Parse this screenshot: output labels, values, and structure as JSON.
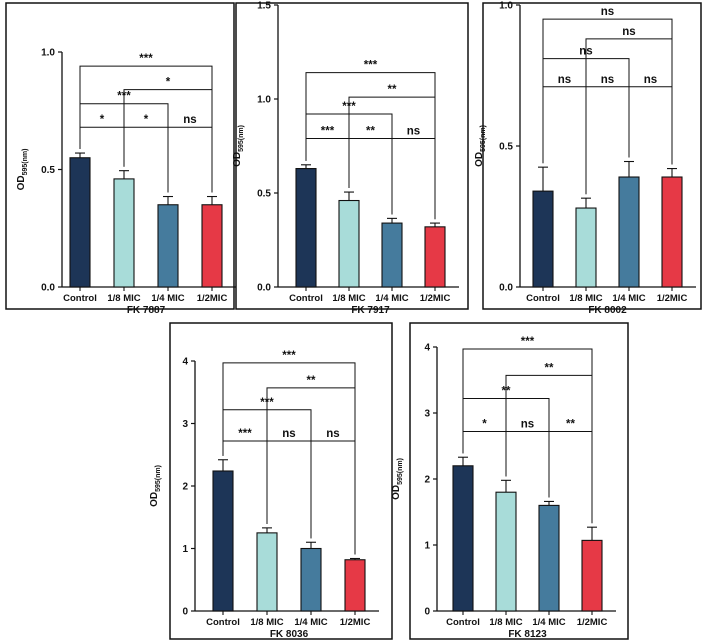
{
  "chart_data": [
    {
      "type": "bar",
      "title": "",
      "xlabel": "FK 7887",
      "ylabel": {
        "main": "OD",
        "sub": "595(nm)"
      },
      "categories": [
        "Control",
        "1/8 MIC",
        "1/4 MIC",
        "1/2MIC"
      ],
      "values": [
        0.55,
        0.46,
        0.35,
        0.35
      ],
      "errors": [
        0.02,
        0.035,
        0.035,
        0.035
      ],
      "ylim": [
        0,
        1.0
      ],
      "yticks": [
        "0.0",
        "0.5",
        "1.0"
      ],
      "significance": [
        {
          "from": 0,
          "to": 1,
          "label": "*"
        },
        {
          "from": 1,
          "to": 2,
          "label": "*"
        },
        {
          "from": 2,
          "to": 3,
          "label": "ns"
        },
        {
          "from": 0,
          "to": 2,
          "label": "***"
        },
        {
          "from": 1,
          "to": 3,
          "label": "*"
        },
        {
          "from": 0,
          "to": 3,
          "label": "***"
        }
      ]
    },
    {
      "type": "bar",
      "title": "",
      "xlabel": "FK 7917",
      "ylabel": {
        "main": "OD",
        "sub": "595(nm)"
      },
      "categories": [
        "Control",
        "1/8 MIC",
        "1/4 MIC",
        "1/2MIC"
      ],
      "values": [
        0.63,
        0.46,
        0.34,
        0.32
      ],
      "errors": [
        0.02,
        0.045,
        0.025,
        0.02
      ],
      "ylim": [
        0,
        1.5
      ],
      "yticks": [
        "0.0",
        "0.5",
        "1.0",
        "1.5"
      ],
      "significance": [
        {
          "from": 0,
          "to": 1,
          "label": "***"
        },
        {
          "from": 1,
          "to": 2,
          "label": "**"
        },
        {
          "from": 2,
          "to": 3,
          "label": "ns"
        },
        {
          "from": 0,
          "to": 2,
          "label": "***"
        },
        {
          "from": 1,
          "to": 3,
          "label": "**"
        },
        {
          "from": 0,
          "to": 3,
          "label": "***"
        }
      ]
    },
    {
      "type": "bar",
      "title": "",
      "xlabel": "FK 8002",
      "ylabel": {
        "main": "OD",
        "sub": "595(nm)"
      },
      "categories": [
        "Control",
        "1/8 MIC",
        "1/4 MIC",
        "1/2MIC"
      ],
      "values": [
        0.34,
        0.28,
        0.39,
        0.39
      ],
      "errors": [
        0.085,
        0.035,
        0.055,
        0.03
      ],
      "ylim": [
        0,
        1.0
      ],
      "yticks": [
        "0.0",
        "0.5",
        "1.0"
      ],
      "significance": [
        {
          "from": 0,
          "to": 1,
          "label": "ns"
        },
        {
          "from": 1,
          "to": 2,
          "label": "ns"
        },
        {
          "from": 2,
          "to": 3,
          "label": "ns"
        },
        {
          "from": 0,
          "to": 2,
          "label": "ns"
        },
        {
          "from": 1,
          "to": 3,
          "label": "ns"
        },
        {
          "from": 0,
          "to": 3,
          "label": "ns"
        }
      ]
    },
    {
      "type": "bar",
      "title": "",
      "xlabel": "FK 8036",
      "ylabel": {
        "main": "OD",
        "sub": "595(nm)"
      },
      "categories": [
        "Control",
        "1/8 MIC",
        "1/4 MIC",
        "1/2MIC"
      ],
      "values": [
        2.24,
        1.25,
        1.0,
        0.82
      ],
      "errors": [
        0.18,
        0.08,
        0.1,
        0.02
      ],
      "ylim": [
        0,
        4.0
      ],
      "yticks": [
        "0",
        "1",
        "2",
        "3",
        "4"
      ],
      "significance": [
        {
          "from": 0,
          "to": 1,
          "label": "***"
        },
        {
          "from": 1,
          "to": 2,
          "label": "ns"
        },
        {
          "from": 2,
          "to": 3,
          "label": "ns"
        },
        {
          "from": 0,
          "to": 2,
          "label": "***"
        },
        {
          "from": 1,
          "to": 3,
          "label": "**"
        },
        {
          "from": 0,
          "to": 3,
          "label": "***"
        }
      ]
    },
    {
      "type": "bar",
      "title": "",
      "xlabel": "FK 8123",
      "ylabel": {
        "main": "OD",
        "sub": "595(nm)"
      },
      "categories": [
        "Control",
        "1/8 MIC",
        "1/4 MIC",
        "1/2MIC"
      ],
      "values": [
        2.2,
        1.8,
        1.6,
        1.07
      ],
      "errors": [
        0.13,
        0.18,
        0.06,
        0.2
      ],
      "ylim": [
        0,
        4.0
      ],
      "yticks": [
        "0",
        "1",
        "2",
        "3",
        "4"
      ],
      "significance": [
        {
          "from": 0,
          "to": 1,
          "label": "*"
        },
        {
          "from": 1,
          "to": 2,
          "label": "ns"
        },
        {
          "from": 2,
          "to": 3,
          "label": "**"
        },
        {
          "from": 0,
          "to": 2,
          "label": "**"
        },
        {
          "from": 1,
          "to": 3,
          "label": "**"
        },
        {
          "from": 0,
          "to": 3,
          "label": "***"
        }
      ]
    }
  ],
  "colors": {
    "bars": [
      "#1d3557",
      "#a8dcd9",
      "#457b9d",
      "#e63946"
    ],
    "axis": "#111111",
    "frame": "#111111"
  }
}
